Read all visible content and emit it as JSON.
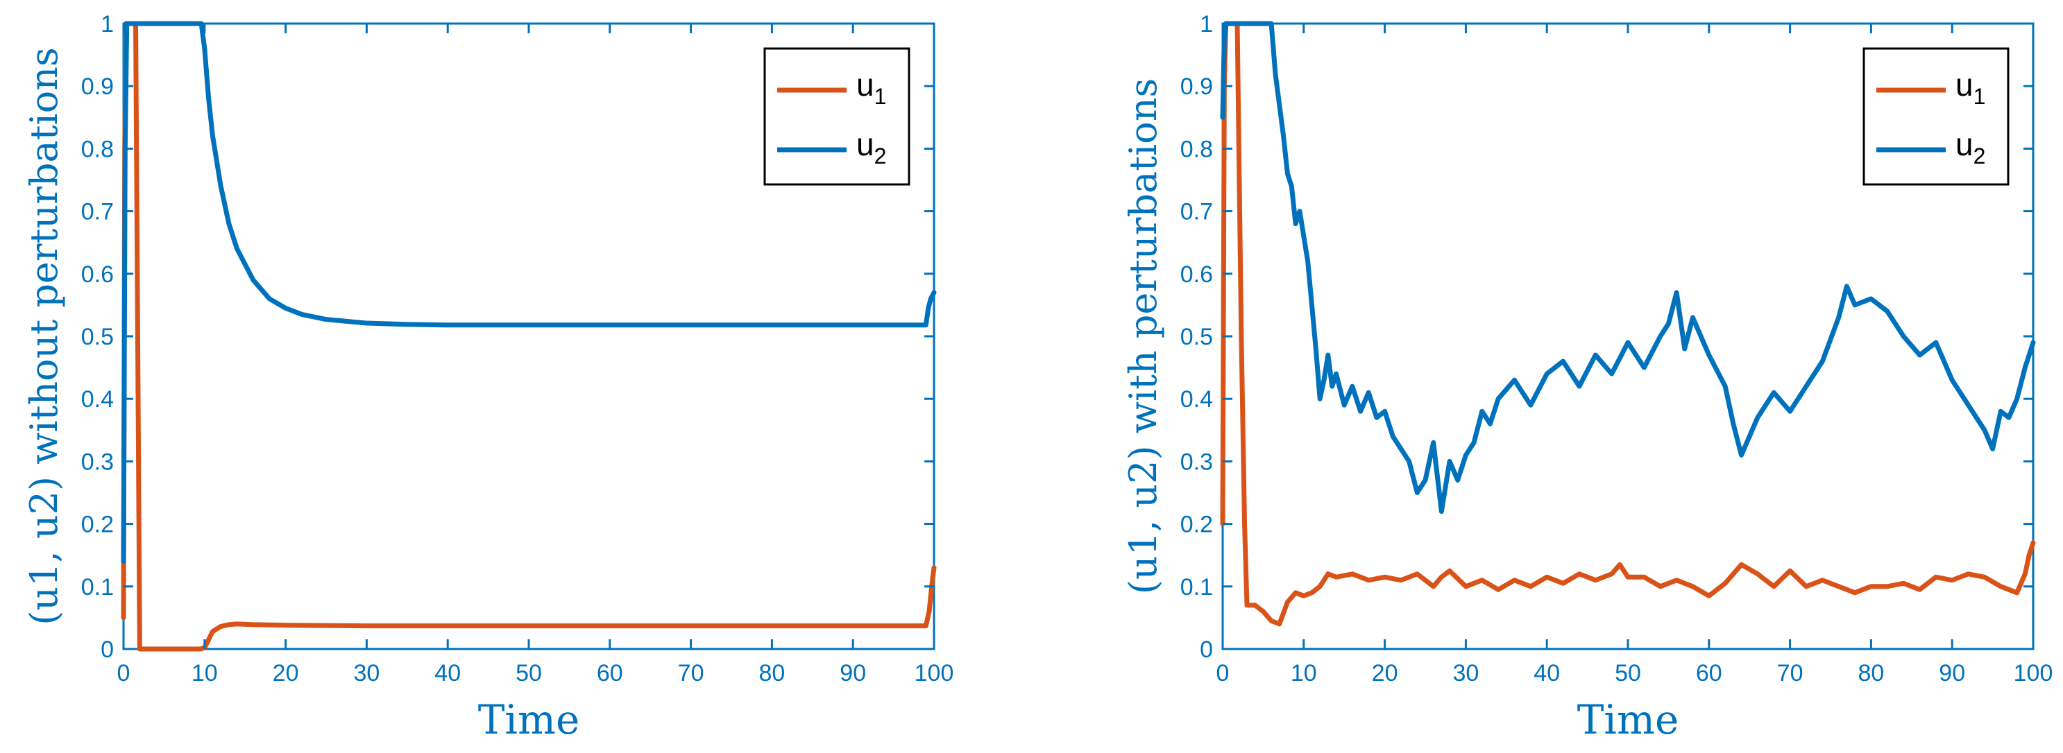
{
  "colors": {
    "axis": "#0072BD",
    "u1": "#D95319",
    "u2": "#0072BD",
    "legend_border": "#000000"
  },
  "chart_data": [
    {
      "type": "line",
      "xlabel": "Time",
      "ylabel": "(u1, u2) without perturbations",
      "xlim": [
        0,
        100
      ],
      "ylim": [
        0,
        1
      ],
      "xticks": [
        "0",
        "10",
        "20",
        "30",
        "40",
        "50",
        "60",
        "70",
        "80",
        "90",
        "100"
      ],
      "yticks": [
        "0",
        "0.1",
        "0.2",
        "0.3",
        "0.4",
        "0.5",
        "0.6",
        "0.7",
        "0.8",
        "0.9",
        "1"
      ],
      "grid": false,
      "legend_position": "top-right",
      "legend": [
        {
          "base": "u",
          "sub": "1",
          "color": "#D95319"
        },
        {
          "base": "u",
          "sub": "2",
          "color": "#0072BD"
        }
      ],
      "series": [
        {
          "color": "#D95319",
          "x": [
            0,
            0.15,
            0.3,
            1.5,
            2.0,
            9.5,
            10.0,
            10.5,
            11,
            12,
            13,
            14,
            16,
            20,
            30,
            50,
            70,
            90,
            99,
            99.4,
            99.8,
            100
          ],
          "y": [
            0.05,
            0.8,
            1.0,
            1.0,
            0.0,
            0.0,
            0.002,
            0.015,
            0.028,
            0.036,
            0.039,
            0.04,
            0.039,
            0.038,
            0.037,
            0.037,
            0.037,
            0.037,
            0.037,
            0.06,
            0.11,
            0.13
          ]
        },
        {
          "color": "#0072BD",
          "x": [
            0,
            0.2,
            0.4,
            9.6,
            10,
            10.5,
            11,
            12,
            13,
            14,
            16,
            18,
            20,
            22,
            25,
            30,
            35,
            40,
            50,
            70,
            90,
            99,
            99.3,
            99.6,
            100
          ],
          "y": [
            0.14,
            0.8,
            1.0,
            1.0,
            0.96,
            0.88,
            0.82,
            0.74,
            0.68,
            0.64,
            0.59,
            0.56,
            0.545,
            0.535,
            0.527,
            0.521,
            0.519,
            0.518,
            0.518,
            0.518,
            0.518,
            0.518,
            0.545,
            0.56,
            0.57
          ]
        }
      ]
    },
    {
      "type": "line",
      "xlabel": "Time",
      "ylabel": "(u1, u2) with perturbations",
      "xlim": [
        0,
        100
      ],
      "ylim": [
        0,
        1
      ],
      "xticks": [
        "0",
        "10",
        "20",
        "30",
        "40",
        "50",
        "60",
        "70",
        "80",
        "90",
        "100"
      ],
      "yticks": [
        "0",
        "0.1",
        "0.2",
        "0.3",
        "0.4",
        "0.5",
        "0.6",
        "0.7",
        "0.8",
        "0.9",
        "1"
      ],
      "grid": false,
      "legend_position": "top-right",
      "legend": [
        {
          "base": "u",
          "sub": "1",
          "color": "#D95319"
        },
        {
          "base": "u",
          "sub": "2",
          "color": "#0072BD"
        }
      ],
      "series": [
        {
          "color": "#D95319",
          "x": [
            0,
            0.2,
            0.4,
            1.8,
            2.3,
            2.7,
            3,
            4,
            5,
            6,
            7,
            8,
            9,
            10,
            11,
            12,
            13,
            14,
            16,
            18,
            20,
            22,
            24,
            26,
            27,
            28,
            30,
            32,
            34,
            36,
            38,
            40,
            42,
            44,
            46,
            48,
            49,
            50,
            52,
            54,
            56,
            58,
            60,
            62,
            64,
            66,
            68,
            70,
            72,
            74,
            76,
            78,
            80,
            82,
            84,
            86,
            88,
            90,
            92,
            94,
            96,
            98,
            99,
            99.5,
            100
          ],
          "y": [
            0.2,
            0.9,
            1.0,
            1.0,
            0.5,
            0.2,
            0.07,
            0.07,
            0.06,
            0.045,
            0.04,
            0.075,
            0.09,
            0.085,
            0.09,
            0.1,
            0.12,
            0.115,
            0.12,
            0.11,
            0.115,
            0.11,
            0.12,
            0.1,
            0.115,
            0.125,
            0.1,
            0.11,
            0.095,
            0.11,
            0.1,
            0.115,
            0.105,
            0.12,
            0.11,
            0.12,
            0.135,
            0.115,
            0.115,
            0.1,
            0.11,
            0.1,
            0.085,
            0.105,
            0.135,
            0.12,
            0.1,
            0.125,
            0.1,
            0.11,
            0.1,
            0.09,
            0.1,
            0.1,
            0.105,
            0.095,
            0.115,
            0.11,
            0.12,
            0.115,
            0.1,
            0.09,
            0.12,
            0.15,
            0.17
          ]
        },
        {
          "color": "#0072BD",
          "x": [
            0,
            0.2,
            0.4,
            6.0,
            6.5,
            7,
            7.5,
            8,
            8.5,
            9,
            9.5,
            10,
            10.5,
            11,
            11.5,
            12,
            12.5,
            13,
            13.5,
            14,
            15,
            16,
            17,
            18,
            19,
            20,
            21,
            22,
            23,
            24,
            25,
            26,
            27,
            28,
            29,
            30,
            31,
            32,
            33,
            34,
            36,
            38,
            40,
            42,
            44,
            46,
            48,
            50,
            52,
            54,
            55,
            56,
            57,
            58,
            60,
            62,
            63,
            64,
            65,
            66,
            68,
            70,
            72,
            74,
            76,
            77,
            78,
            80,
            82,
            84,
            86,
            88,
            90,
            92,
            94,
            95,
            96,
            97,
            98,
            99,
            100
          ],
          "y": [
            0.85,
            0.98,
            1.0,
            1.0,
            0.92,
            0.87,
            0.82,
            0.76,
            0.74,
            0.68,
            0.7,
            0.66,
            0.62,
            0.55,
            0.48,
            0.4,
            0.43,
            0.47,
            0.42,
            0.44,
            0.39,
            0.42,
            0.38,
            0.41,
            0.37,
            0.38,
            0.34,
            0.32,
            0.3,
            0.25,
            0.27,
            0.33,
            0.22,
            0.3,
            0.27,
            0.31,
            0.33,
            0.38,
            0.36,
            0.4,
            0.43,
            0.39,
            0.44,
            0.46,
            0.42,
            0.47,
            0.44,
            0.49,
            0.45,
            0.5,
            0.52,
            0.57,
            0.48,
            0.53,
            0.47,
            0.42,
            0.36,
            0.31,
            0.34,
            0.37,
            0.41,
            0.38,
            0.42,
            0.46,
            0.53,
            0.58,
            0.55,
            0.56,
            0.54,
            0.5,
            0.47,
            0.49,
            0.43,
            0.39,
            0.35,
            0.32,
            0.38,
            0.37,
            0.4,
            0.45,
            0.49
          ]
        }
      ]
    }
  ]
}
